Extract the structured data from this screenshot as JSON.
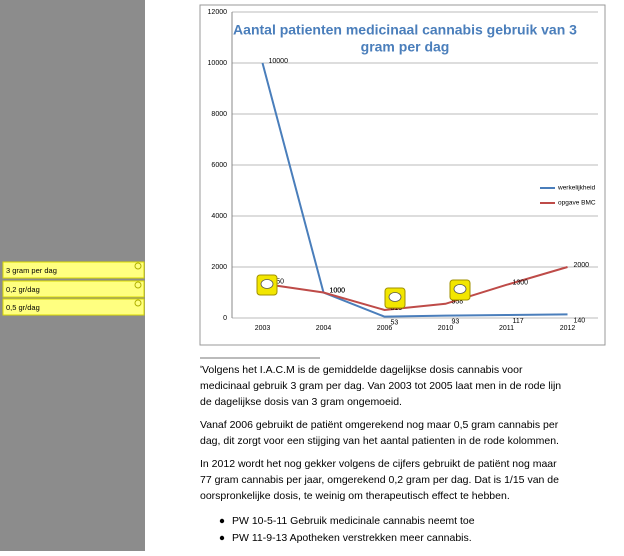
{
  "sidebar": {
    "comments": [
      "3 gram per dag",
      "0,2 gr/dag",
      "0,5 gr/dag"
    ]
  },
  "chart_data": {
    "type": "line",
    "title": [
      "Aantal patienten medicinaal cannabis gebruik van 3",
      "gram per dag"
    ],
    "categories": [
      "2003",
      "2004",
      "2006",
      "2010",
      "2011",
      "2012"
    ],
    "series": [
      {
        "name": "werkelijkheid",
        "color": "#4a7ebb",
        "values": [
          10000,
          1000,
          53,
          93,
          117,
          140
        ]
      },
      {
        "name": "opgave BMC",
        "color": "#be4b48",
        "values": [
          1350,
          1000,
          315,
          558,
          1300,
          2000
        ]
      }
    ],
    "ylim": [
      0,
      12000
    ],
    "yticks": [
      0,
      2000,
      4000,
      6000,
      8000,
      10000,
      12000
    ],
    "grid": true,
    "legend": "right"
  },
  "text": {
    "paragraphs": [
      [
        "ʹVolgens het I.A.C.M is de gemiddelde dagelijkse dosis cannabis voor",
        "medicinaal gebruik 3 gram per dag.  Van 2003 tot 2005 laat men in de rode lijn",
        "de dagelijkse dosis van 3 gram ongemoeid."
      ],
      [
        "Vanaf 2006 gebruikt de patiënt omgerekend nog maar 0,5 gram cannabis per",
        "dag, dit zorgt voor een stijging van het aantal patienten in de rode kolommen."
      ],
      [
        "In 2012 wordt het nog gekker volgens de cijfers gebruikt de patiënt nog maar",
        "77 gram cannabis per jaar, omgerekend 0,2 gram per dag.  Dat is 1/15 van de",
        "oorspronkelijke dosis, te weinig om therapeutisch effect te hebben."
      ]
    ],
    "bullets": [
      "PW 10-5-11 Gebruik medicinale cannabis neemt toe",
      "PW 11-9-13 Apotheken verstrekken meer cannabis."
    ]
  }
}
